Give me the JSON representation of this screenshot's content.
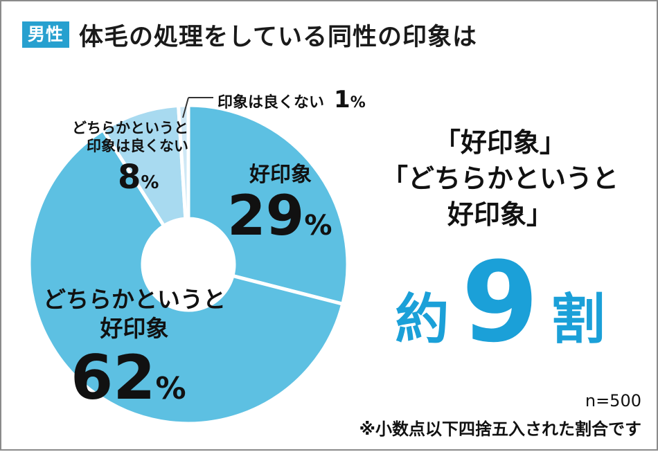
{
  "header": {
    "badge": "男性",
    "title": "体毛の処理をしている同性の印象は"
  },
  "chart_data": {
    "type": "pie",
    "donut": true,
    "categories": [
      "好印象",
      "どちらかというと好印象",
      "どちらかというと印象は良くない",
      "印象は良くない"
    ],
    "values": [
      29,
      62,
      8,
      1
    ],
    "unit": "%",
    "colors": [
      "#5dc0e2",
      "#5dc0e2",
      "#a8daf0",
      "#cfe8f5"
    ],
    "labels": {
      "good": {
        "name": "好印象",
        "value": "29",
        "unit": "%"
      },
      "rather_good": {
        "name_line1": "どちらかというと",
        "name_line2": "好印象",
        "value": "62",
        "unit": "%"
      },
      "rather_bad": {
        "name_line1": "どちらかというと",
        "name_line2": "印象は良くない",
        "value": "8",
        "unit": "%"
      },
      "bad": {
        "name": "印象は良くない",
        "value": "1",
        "unit": "%"
      }
    }
  },
  "summary": {
    "line1": "「好印象」",
    "line2": "「どちらかというと",
    "line3": "好印象」",
    "big_prefix": "約",
    "big_number": "9",
    "big_suffix": "割"
  },
  "footer": {
    "sample": "n=500",
    "note": "※小数点以下四捨五入された割合です"
  }
}
